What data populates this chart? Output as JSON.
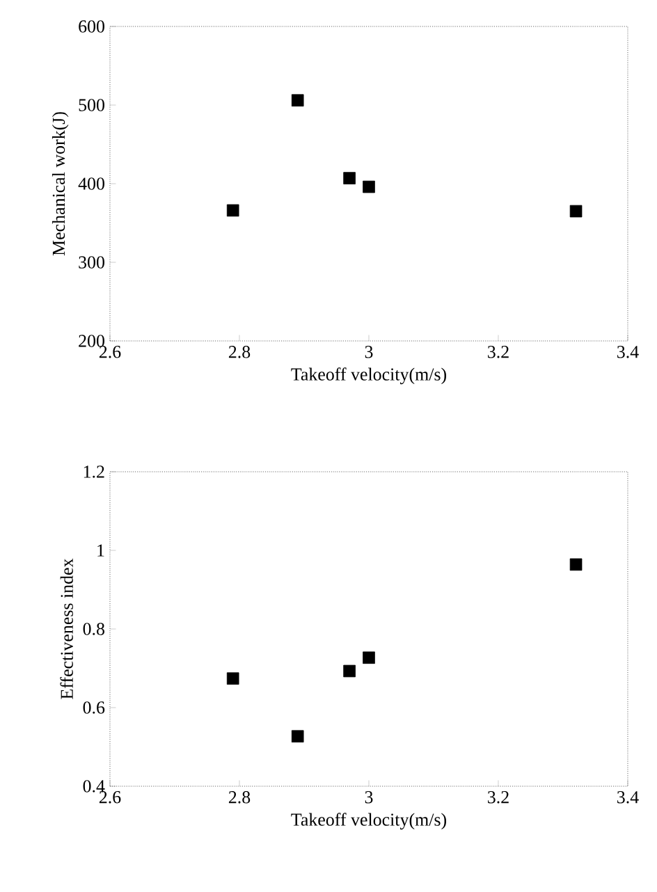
{
  "chart_data": [
    {
      "type": "scatter",
      "x": [
        2.79,
        2.89,
        2.97,
        3.0,
        3.32
      ],
      "values": [
        366,
        506,
        407,
        396,
        365
      ],
      "color": "#000000",
      "marker": "square",
      "xlabel": "Takeoff velocity(m/s)",
      "ylabel": "Mechanical work(J)",
      "xlim": [
        2.6,
        3.4
      ],
      "ylim": [
        200,
        600
      ],
      "xticks": [
        2.6,
        2.8,
        3,
        3.2,
        3.4
      ],
      "yticks": [
        200,
        300,
        400,
        500,
        600
      ]
    },
    {
      "type": "scatter",
      "x": [
        2.79,
        2.89,
        2.97,
        3.0,
        3.32
      ],
      "values": [
        0.674,
        0.527,
        0.693,
        0.727,
        0.964
      ],
      "color": "#000000",
      "marker": "square",
      "xlabel": "Takeoff velocity(m/s)",
      "ylabel": "Effectiveness index",
      "xlim": [
        2.6,
        3.4
      ],
      "ylim": [
        0.4,
        1.2
      ],
      "xticks": [
        2.6,
        2.8,
        3,
        3.2,
        3.4
      ],
      "yticks": [
        0.4,
        0.6,
        0.8,
        1,
        1.2
      ]
    }
  ]
}
